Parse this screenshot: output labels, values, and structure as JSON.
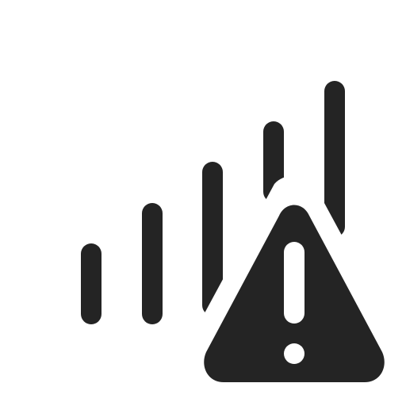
{
  "icon": {
    "name": "cellular-warning-icon",
    "signal_bar_count": 5,
    "colors": {
      "foreground": "#242424",
      "background": "#ffffff"
    }
  }
}
